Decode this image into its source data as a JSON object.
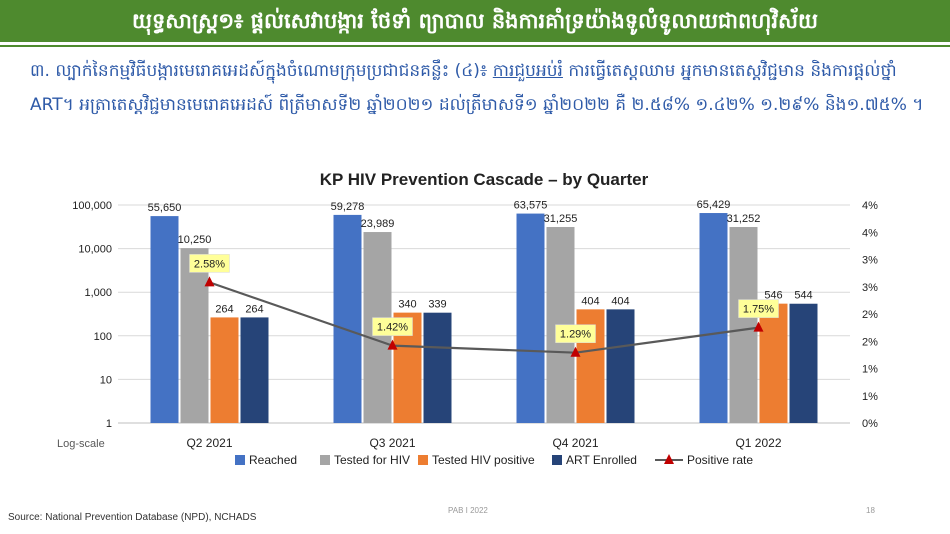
{
  "banner": {
    "title": "យុទ្ធសាស្ត្រ១៖ ផ្តល់សេវាបង្ការ ថែទាំ ព្យាបាល និងការគាំទ្រយ៉ាងទូលំទូលាយជាពហុវិស័យ"
  },
  "intro": {
    "prefix": "៣. ល្បាក់នៃកម្មវិធីបង្ការមេរោគអេដស៍ក្នុងចំណោមក្រុមប្រជាជនគន្លឹះ (៤)៖ ",
    "highlight": "ការជួបអប់រំ",
    "rest": " ការធ្វើតេស្តឈាម អ្នកមានតេស្តវិជ្ជមាន និងការផ្តល់ថ្នាំ ART។ អត្រាតេស្តវិជ្ជមានមេរោគអេដស៍ ពីត្រីមាសទី២ ឆ្នាំ២០២១ ដល់ត្រីមាសទី១ ឆ្នាំ២០២២ គឺ ២.៥៨% ១.៤២% ១.២៩% និង១.៧៥% ។"
  },
  "colors": {
    "reached": "#4472c4",
    "tested": "#a5a5a5",
    "positive": "#ed7d31",
    "art": "#264478",
    "rate_line": "#595959",
    "rate_marker": "#c00000",
    "rate_label_bg": "#ffff99",
    "banner": "#4e8a2e"
  },
  "chart_data": {
    "type": "bar",
    "title": "KP HIV Prevention Cascade – by Quarter",
    "categories": [
      "Q2 2021",
      "Q3 2021",
      "Q4 2021",
      "Q1 2022"
    ],
    "series": [
      {
        "name": "Reached",
        "values": [
          55650,
          59278,
          63575,
          65429
        ],
        "labels": [
          "55,650",
          "59,278",
          "63,575",
          "65,429"
        ]
      },
      {
        "name": "Tested for HIV",
        "values": [
          10250,
          23989,
          31255,
          31252
        ],
        "labels": [
          "10,250",
          "23,989",
          "31,255",
          "31,252"
        ]
      },
      {
        "name": "Tested HIV positive",
        "values": [
          264,
          340,
          404,
          546
        ],
        "labels": [
          "264",
          "340",
          "404",
          "546"
        ]
      },
      {
        "name": "ART Enrolled",
        "values": [
          264,
          339,
          404,
          544
        ],
        "labels": [
          "264",
          "339",
          "404",
          "544"
        ]
      }
    ],
    "line_series": {
      "name": "Positive rate",
      "values": [
        2.58,
        1.42,
        1.29,
        1.75
      ],
      "labels": [
        "2.58%",
        "1.42%",
        "1.29%",
        "1.75%"
      ]
    },
    "y_left": {
      "scale": "log",
      "ticks": [
        1,
        10,
        100,
        1000,
        10000,
        100000
      ],
      "tick_labels": [
        "1",
        "10",
        "100",
        "1,000",
        "10,000",
        "100,000"
      ],
      "label": "Log-scale"
    },
    "y_right": {
      "min": 0,
      "max": 4,
      "ticks": [
        0,
        0.5,
        1,
        1.5,
        2,
        2.5,
        3,
        3.5,
        4
      ],
      "tick_labels": [
        "0%",
        "1%",
        "1%",
        "2%",
        "2%",
        "3%",
        "3%",
        "4%",
        "4%"
      ]
    },
    "legend_position": "bottom"
  },
  "source": "Source: National Prevention Database (NPD), NCHADS",
  "footer": "PAB I 2022",
  "page_number": "18"
}
